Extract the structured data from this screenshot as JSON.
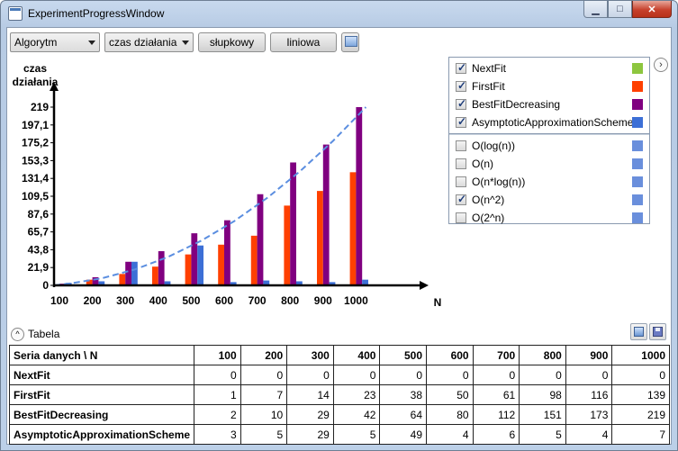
{
  "window": {
    "title": "ExperimentProgressWindow",
    "min_glyph": "▁",
    "max_glyph": "□",
    "close_glyph": "✕"
  },
  "toolbar": {
    "algorithm_combo": "Algorytm",
    "metric_combo": "czas działania",
    "bar_button": "słupkowy",
    "line_button": "liniowa"
  },
  "chart_data": {
    "type": "bar",
    "ylabel_line1": "czas",
    "ylabel_line2": "działania",
    "xlabel": "N",
    "categories": [
      "100",
      "200",
      "300",
      "400",
      "500",
      "600",
      "700",
      "800",
      "900",
      "1000"
    ],
    "y_ticks": [
      "0",
      "21,9",
      "43,8",
      "65,7",
      "87,6",
      "109,5",
      "131,4",
      "153,3",
      "175,2",
      "197,1",
      "219"
    ],
    "ylim": [
      0,
      219
    ],
    "series": [
      {
        "name": "NextFit",
        "color": "#8dc63f",
        "values": [
          0,
          0,
          0,
          0,
          0,
          0,
          0,
          0,
          0,
          0
        ]
      },
      {
        "name": "FirstFit",
        "color": "#ff4000",
        "values": [
          1,
          7,
          14,
          23,
          38,
          50,
          61,
          98,
          116,
          139
        ]
      },
      {
        "name": "BestFitDecreasing",
        "color": "#800080",
        "values": [
          2,
          10,
          29,
          42,
          64,
          80,
          112,
          151,
          173,
          219
        ]
      },
      {
        "name": "AsymptoticApproximationScheme",
        "color": "#3c6fd6",
        "values": [
          3,
          5,
          29,
          5,
          49,
          4,
          6,
          5,
          4,
          7
        ]
      }
    ],
    "reference_curve": {
      "name": "O(n^2)",
      "color": "#5b8ee0",
      "style": "dashed",
      "values": [
        2.2,
        8.8,
        19.7,
        35.0,
        54.8,
        78.8,
        107.3,
        140.2,
        177.4,
        219
      ]
    }
  },
  "legend": {
    "series": [
      {
        "label": "NextFit",
        "checked": true,
        "color": "#8dc63f"
      },
      {
        "label": "FirstFit",
        "checked": true,
        "color": "#ff4000"
      },
      {
        "label": "BestFitDecreasing",
        "checked": true,
        "color": "#800080"
      },
      {
        "label": "AsymptoticApproximationScheme",
        "checked": true,
        "color": "#3c6fd6"
      }
    ],
    "complexity": [
      {
        "label": "O(log(n))",
        "checked": false,
        "color": "#6a8fdc"
      },
      {
        "label": "O(n)",
        "checked": false,
        "color": "#6a8fdc"
      },
      {
        "label": "O(n*log(n))",
        "checked": false,
        "color": "#6a8fdc"
      },
      {
        "label": "O(n^2)",
        "checked": true,
        "color": "#6a8fdc"
      },
      {
        "label": "O(2^n)",
        "checked": false,
        "color": "#6a8fdc"
      }
    ],
    "expand_glyph": "›"
  },
  "table_section": {
    "label": "Tabela",
    "collapse_glyph": "^"
  },
  "table": {
    "header_first": "Seria danych \\ N",
    "columns": [
      "100",
      "200",
      "300",
      "400",
      "500",
      "600",
      "700",
      "800",
      "900",
      "1000"
    ],
    "rows": [
      {
        "name": "NextFit",
        "values": [
          "0",
          "0",
          "0",
          "0",
          "0",
          "0",
          "0",
          "0",
          "0",
          "0"
        ]
      },
      {
        "name": "FirstFit",
        "values": [
          "1",
          "7",
          "14",
          "23",
          "38",
          "50",
          "61",
          "98",
          "116",
          "139"
        ]
      },
      {
        "name": "BestFitDecreasing",
        "values": [
          "2",
          "10",
          "29",
          "42",
          "64",
          "80",
          "112",
          "151",
          "173",
          "219"
        ]
      },
      {
        "name": "AsymptoticApproximationScheme",
        "values": [
          "3",
          "5",
          "29",
          "5",
          "49",
          "4",
          "6",
          "5",
          "4",
          "7"
        ]
      }
    ]
  }
}
